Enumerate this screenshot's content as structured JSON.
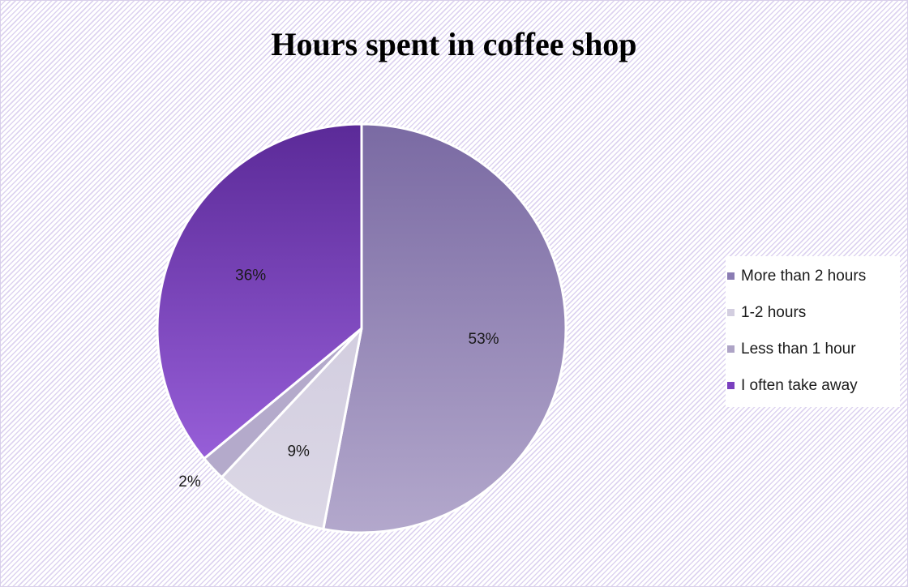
{
  "chart_data": {
    "type": "pie",
    "title": "Hours spent in coffee shop",
    "slices": [
      {
        "name": "More than 2 hours",
        "value": 53,
        "label": "53%",
        "color_top": "#7a6aa3",
        "color_bottom": "#b3a8cc",
        "legend_color": "#8a7cb3"
      },
      {
        "name": "1-2 hours",
        "value": 9,
        "label": "9%",
        "color_top": "#c9c3d9",
        "color_bottom": "#dcd8e6",
        "legend_color": "#d3cee0"
      },
      {
        "name": "Less than 1 hour",
        "value": 2,
        "label": "2%",
        "color_top": "#b4aacb",
        "color_bottom": "#b4aacb",
        "legend_color": "#aea4c6"
      },
      {
        "name": "I often take away",
        "value": 36,
        "label": "36%",
        "color_top": "#5b2a98",
        "color_bottom": "#a46ae6",
        "legend_color": "#7a3fbf"
      }
    ],
    "legend_position": "right",
    "start": "top",
    "direction": "clockwise"
  }
}
